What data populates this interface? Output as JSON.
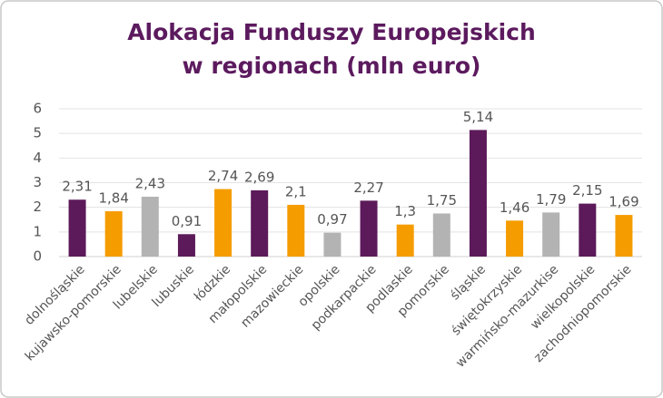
{
  "chart_data": {
    "type": "bar",
    "title_lines": [
      "Alokacja Funduszy Europejskich",
      "w regionach (mln euro)"
    ],
    "categories": [
      "dolnośląskie",
      "kujawsko-pomorskie",
      "lubelskie",
      "lubuskie",
      "łódzkie",
      "małopolskie",
      "mazowieckie",
      "opolskie",
      "podkarpackie",
      "podlaskie",
      "pomorskie",
      "śląskie",
      "świętokrzyskie",
      "warmińsko-mazurkise",
      "wielkopolskie",
      "zachodniopomorskie"
    ],
    "values": [
      2.31,
      1.84,
      2.43,
      0.91,
      2.74,
      2.69,
      2.1,
      0.97,
      2.27,
      1.3,
      1.75,
      5.14,
      1.46,
      1.79,
      2.15,
      1.69
    ],
    "value_labels": [
      "2,31",
      "1,84",
      "2,43",
      "0,91",
      "2,74",
      "2,69",
      "2,1",
      "0,97",
      "2,27",
      "1,3",
      "1,75",
      "5,14",
      "1,46",
      "1,79",
      "2,15",
      "1,69"
    ],
    "colors": [
      "#5c1a5a",
      "#f59c00",
      "#b3b3b3",
      "#5c1a5a",
      "#f59c00",
      "#5c1a5a",
      "#f59c00",
      "#b3b3b3",
      "#5c1a5a",
      "#f59c00",
      "#b3b3b3",
      "#5c1a5a",
      "#f59c00",
      "#b3b3b3",
      "#5c1a5a",
      "#f59c00"
    ],
    "ylim": [
      0,
      6
    ],
    "yticks": [
      0,
      1,
      2,
      3,
      4,
      5,
      6
    ],
    "grid": true
  }
}
